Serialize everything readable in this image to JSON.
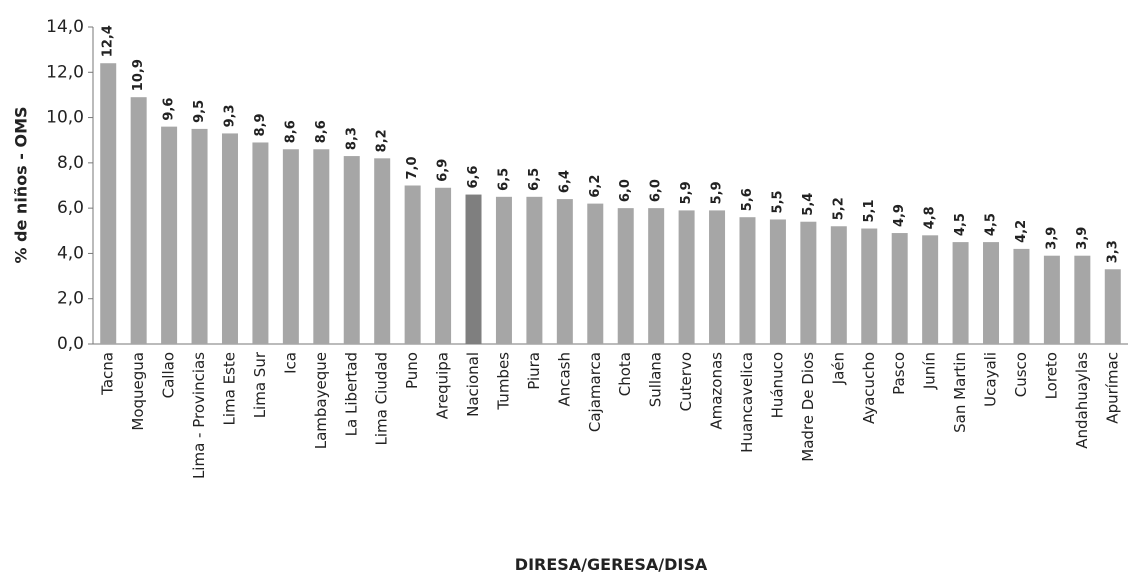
{
  "chart_data": {
    "type": "bar",
    "y_label": "% de niños - OMS",
    "x_label": "DIRESA/GERESA/DISA",
    "categories": [
      "Tacna",
      "Moquegua",
      "Callao",
      "Lima - Provincias",
      "Lima Este",
      "Lima Sur",
      "Ica",
      "Lambayeque",
      "La Libertad",
      "Lima Ciudad",
      "Puno",
      "Arequipa",
      "Nacional",
      "Tumbes",
      "Piura",
      "Ancash",
      "Cajamarca",
      "Chota",
      "Sullana",
      "Cutervo",
      "Amazonas",
      "Huancavelica",
      "Huánuco",
      "Madre De Dios",
      "Jaén",
      "Ayacucho",
      "Pasco",
      "Junín",
      "San Martin",
      "Ucayali",
      "Cusco",
      "Loreto",
      "Andahuaylas",
      "Apurímac"
    ],
    "values": [
      12.4,
      10.9,
      9.6,
      9.5,
      9.3,
      8.9,
      8.6,
      8.6,
      8.3,
      8.2,
      7.0,
      6.9,
      6.6,
      6.5,
      6.5,
      6.4,
      6.2,
      6.0,
      6.0,
      5.9,
      5.9,
      5.6,
      5.5,
      5.4,
      5.2,
      5.1,
      4.9,
      4.8,
      4.5,
      4.5,
      4.2,
      3.9,
      3.9,
      3.3
    ],
    "value_labels": [
      "12,4",
      "10,9",
      "9,6",
      "9,5",
      "9,3",
      "8,9",
      "8,6",
      "8,6",
      "8,3",
      "8,2",
      "7,0",
      "6,9",
      "6,6",
      "6,5",
      "6,5",
      "6,4",
      "6,2",
      "6,0",
      "6,0",
      "5,9",
      "5,9",
      "5,6",
      "5,5",
      "5,4",
      "5,2",
      "5,1",
      "4,9",
      "4,8",
      "4,5",
      "4,5",
      "4,2",
      "3,9",
      "3,9",
      "3,3"
    ],
    "colors": [
      "#a6a6a6",
      "#a6a6a6",
      "#a6a6a6",
      "#a6a6a6",
      "#a6a6a6",
      "#a6a6a6",
      "#a6a6a6",
      "#a6a6a6",
      "#a6a6a6",
      "#a6a6a6",
      "#a6a6a6",
      "#a6a6a6",
      "#7f7f7f",
      "#a6a6a6",
      "#a6a6a6",
      "#a6a6a6",
      "#a6a6a6",
      "#a6a6a6",
      "#a6a6a6",
      "#a6a6a6",
      "#a6a6a6",
      "#a6a6a6",
      "#a6a6a6",
      "#a6a6a6",
      "#a6a6a6",
      "#a6a6a6",
      "#a6a6a6",
      "#a6a6a6",
      "#a6a6a6",
      "#a6a6a6",
      "#a6a6a6",
      "#a6a6a6",
      "#a6a6a6",
      "#a6a6a6"
    ],
    "ylim": [
      0,
      14
    ],
    "yticks": [
      {
        "value": 0,
        "label": "0,0"
      },
      {
        "value": 2,
        "label": "2,0"
      },
      {
        "value": 4,
        "label": "4,0"
      },
      {
        "value": 6,
        "label": "6,0"
      },
      {
        "value": 8,
        "label": "8,0"
      },
      {
        "value": 10,
        "label": "10,0"
      },
      {
        "value": 12,
        "label": "12,0"
      },
      {
        "value": 14,
        "label": "14,0"
      }
    ],
    "grid": false
  }
}
